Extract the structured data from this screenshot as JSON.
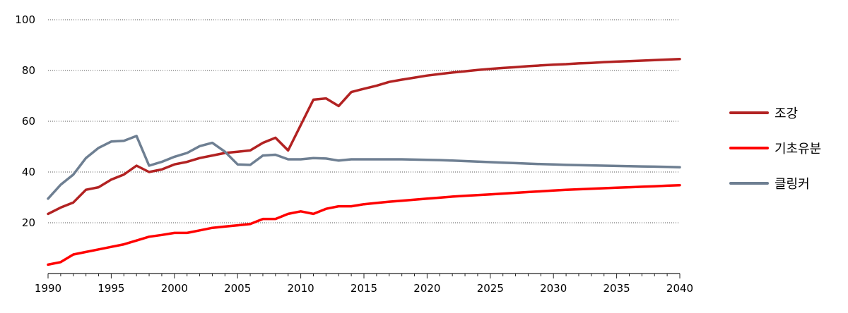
{
  "chart_data": {
    "type": "line",
    "title": "",
    "xlabel": "",
    "ylabel": "",
    "xlim": [
      1990,
      2040
    ],
    "ylim": [
      0,
      100
    ],
    "yticks": [
      20,
      40,
      60,
      80,
      100
    ],
    "xticks": [
      1990,
      1995,
      2000,
      2005,
      2010,
      2015,
      2020,
      2025,
      2030,
      2035,
      2040
    ],
    "grid": "horizontal-dotted",
    "legend": "right",
    "x": [
      1990,
      1991,
      1992,
      1993,
      1994,
      1995,
      1996,
      1997,
      1998,
      1999,
      2000,
      2001,
      2002,
      2003,
      2004,
      2005,
      2006,
      2007,
      2008,
      2009,
      2010,
      2011,
      2012,
      2013,
      2014,
      2015,
      2016,
      2017,
      2018,
      2019,
      2020,
      2021,
      2022,
      2023,
      2024,
      2025,
      2026,
      2027,
      2028,
      2029,
      2030,
      2031,
      2032,
      2033,
      2034,
      2035,
      2036,
      2037,
      2038,
      2039,
      2040
    ],
    "series": [
      {
        "name": "조강",
        "color": "#b22222",
        "values": [
          23.5,
          26,
          28,
          33,
          34,
          37,
          39,
          42.5,
          40,
          41,
          43,
          44,
          45.5,
          46.5,
          47.5,
          48,
          48.5,
          51.5,
          53.5,
          48.5,
          58.5,
          68.5,
          69,
          66,
          71.5,
          72.8,
          74,
          75.5,
          76.4,
          77.2,
          78,
          78.6,
          79.2,
          79.7,
          80.2,
          80.6,
          81,
          81.3,
          81.7,
          82,
          82.3,
          82.5,
          82.8,
          83,
          83.3,
          83.5,
          83.7,
          83.9,
          84.1,
          84.3,
          84.5
        ]
      },
      {
        "name": "기초유분",
        "color": "#ff0000",
        "values": [
          3.5,
          4.5,
          7.5,
          8.5,
          9.5,
          10.5,
          11.5,
          13,
          14.5,
          15.2,
          16,
          16,
          17,
          18,
          18.5,
          19,
          19.5,
          21.5,
          21.5,
          23.5,
          24.5,
          23.5,
          25.5,
          26.5,
          26.5,
          27.3,
          27.8,
          28.3,
          28.7,
          29.1,
          29.5,
          29.9,
          30.3,
          30.6,
          30.9,
          31.2,
          31.5,
          31.8,
          32.1,
          32.4,
          32.7,
          33,
          33.2,
          33.4,
          33.6,
          33.8,
          34,
          34.2,
          34.4,
          34.6,
          34.8
        ]
      },
      {
        "name": "클링커",
        "color": "#6e7f92",
        "values": [
          29.5,
          35,
          39,
          45.5,
          49.5,
          52,
          52.3,
          54.2,
          42.5,
          44,
          46,
          47.5,
          50.2,
          51.5,
          48,
          43,
          42.8,
          46.5,
          46.8,
          45,
          45,
          45.5,
          45.3,
          44.5,
          45,
          45,
          45,
          45,
          45,
          44.9,
          44.8,
          44.7,
          44.5,
          44.3,
          44.1,
          43.9,
          43.7,
          43.5,
          43.3,
          43.1,
          43,
          42.8,
          42.7,
          42.6,
          42.5,
          42.4,
          42.3,
          42.2,
          42.1,
          42,
          41.9
        ]
      }
    ]
  }
}
